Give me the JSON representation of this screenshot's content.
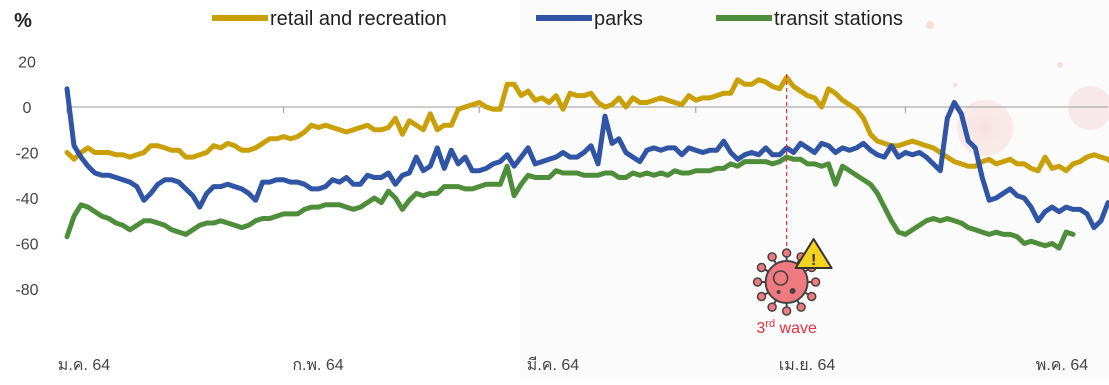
{
  "chart_data": {
    "type": "line",
    "y_unit": "%",
    "ylim": [
      -80,
      20
    ],
    "yticks": [
      20,
      0,
      -20,
      -40,
      -60,
      -80
    ],
    "x_tick_labels": [
      "ม.ค. 64",
      "ก.พ. 64",
      "มี.ค. 64",
      "เม.ย. 64",
      "พ.ค. 64"
    ],
    "x_count": 150,
    "grid": false,
    "legend_position": "top",
    "series": [
      {
        "name": "retail and recreation",
        "color": "#C9A008",
        "values": [
          -20,
          -23,
          -20,
          -18,
          -20,
          -20,
          -20,
          -21,
          -21,
          -22,
          -21,
          -20,
          -17,
          -17,
          -18,
          -19,
          -19,
          -22,
          -22,
          -21,
          -20,
          -17,
          -18,
          -16,
          -17,
          -19,
          -19,
          -18,
          -16,
          -14,
          -14,
          -13,
          -14,
          -13,
          -11,
          -8,
          -9,
          -8,
          -9,
          -10,
          -11,
          -10,
          -9,
          -8,
          -10,
          -10,
          -9,
          -5,
          -12,
          -6,
          -8,
          -10,
          -3,
          -10,
          -8,
          -8,
          -1,
          0,
          1,
          2,
          0,
          -1,
          -1,
          10,
          10,
          5,
          7,
          3,
          4,
          2,
          5,
          -1,
          6,
          5,
          5,
          6,
          2,
          0,
          1,
          4,
          0,
          4,
          2,
          2,
          3,
          4,
          3,
          2,
          1,
          5,
          3,
          4,
          4,
          5,
          6,
          6,
          12,
          10,
          10,
          12,
          11,
          9,
          8,
          13,
          9,
          7,
          5,
          4,
          0,
          8,
          6,
          3,
          1,
          -1,
          -5,
          -12,
          -15,
          -16,
          -17,
          -17,
          -16,
          -15,
          -16,
          -17,
          -18,
          -20,
          -22,
          -24,
          -25,
          -26,
          -26,
          -24,
          -23,
          -25,
          -24,
          -23,
          -25,
          -25,
          -27,
          -28,
          -22,
          -27,
          -26,
          -28,
          -25,
          -24,
          -22,
          -21,
          -22,
          -23,
          -26,
          -28
        ]
      },
      {
        "name": "parks",
        "color": "#2F55A4",
        "values": [
          8,
          -17,
          -22,
          -26,
          -29,
          -30,
          -30,
          -31,
          -32,
          -33,
          -35,
          -41,
          -38,
          -34,
          -32,
          -32,
          -33,
          -36,
          -39,
          -44,
          -38,
          -35,
          -35,
          -34,
          -35,
          -36,
          -38,
          -41,
          -33,
          -33,
          -32,
          -32,
          -33,
          -33,
          -34,
          -36,
          -36,
          -35,
          -32,
          -33,
          -31,
          -34,
          -34,
          -30,
          -31,
          -31,
          -29,
          -34,
          -30,
          -29,
          -22,
          -28,
          -26,
          -18,
          -27,
          -19,
          -25,
          -22,
          -28,
          -28,
          -27,
          -25,
          -24,
          -21,
          -26,
          -22,
          -18,
          -25,
          -24,
          -23,
          -22,
          -20,
          -22,
          -22,
          -20,
          -17,
          -25,
          -4,
          -16,
          -14,
          -20,
          -22,
          -24,
          -19,
          -18,
          -19,
          -18,
          -18,
          -21,
          -18,
          -19,
          -20,
          -19,
          -19,
          -15,
          -20,
          -23,
          -21,
          -20,
          -21,
          -18,
          -21,
          -21,
          -18,
          -20,
          -16,
          -18,
          -20,
          -16,
          -17,
          -20,
          -18,
          -19,
          -18,
          -16,
          -19,
          -21,
          -22,
          -17,
          -22,
          -20,
          -21,
          -20,
          -22,
          -25,
          -28,
          -5,
          2,
          -3,
          -15,
          -18,
          -31,
          -41,
          -40,
          -38,
          -36,
          -39,
          -40,
          -44,
          -50,
          -46,
          -44,
          -46,
          -44,
          -45,
          -45,
          -47,
          -53,
          -50,
          -42
        ]
      },
      {
        "name": "transit stations",
        "color": "#4E8E3A",
        "values": [
          -57,
          -48,
          -43,
          -44,
          -46,
          -48,
          -49,
          -51,
          -52,
          -54,
          -52,
          -50,
          -50,
          -51,
          -52,
          -54,
          -55,
          -56,
          -54,
          -52,
          -51,
          -51,
          -50,
          -51,
          -52,
          -53,
          -52,
          -50,
          -49,
          -49,
          -48,
          -47,
          -47,
          -47,
          -45,
          -44,
          -44,
          -43,
          -43,
          -43,
          -44,
          -45,
          -44,
          -42,
          -40,
          -42,
          -37,
          -40,
          -45,
          -41,
          -38,
          -39,
          -38,
          -38,
          -35,
          -35,
          -35,
          -36,
          -36,
          -35,
          -34,
          -34,
          -34,
          -26,
          -39,
          -34,
          -30,
          -31,
          -31,
          -31,
          -28,
          -29,
          -29,
          -29,
          -30,
          -30,
          -30,
          -29,
          -29,
          -31,
          -31,
          -29,
          -30,
          -29,
          -30,
          -29,
          -30,
          -28,
          -29,
          -29,
          -28,
          -28,
          -28,
          -27,
          -27,
          -25,
          -26,
          -24,
          -24,
          -24,
          -24,
          -25,
          -24,
          -22,
          -23,
          -23,
          -25,
          -25,
          -26,
          -25,
          -34,
          -26,
          -28,
          -30,
          -32,
          -34,
          -38,
          -44,
          -50,
          -55,
          -56,
          -54,
          -52,
          -50,
          -49,
          -50,
          -49,
          -50,
          -51,
          -53,
          -54,
          -55,
          -56,
          -55,
          -56,
          -56,
          -57,
          -60,
          -59,
          -60,
          -61,
          -60,
          -62,
          -55,
          -56
        ]
      }
    ],
    "annotations": [
      {
        "x_index": 103,
        "label_main": "3",
        "label_sup": "rd",
        "label_rest": " wave",
        "color": "#E8303A"
      }
    ]
  }
}
